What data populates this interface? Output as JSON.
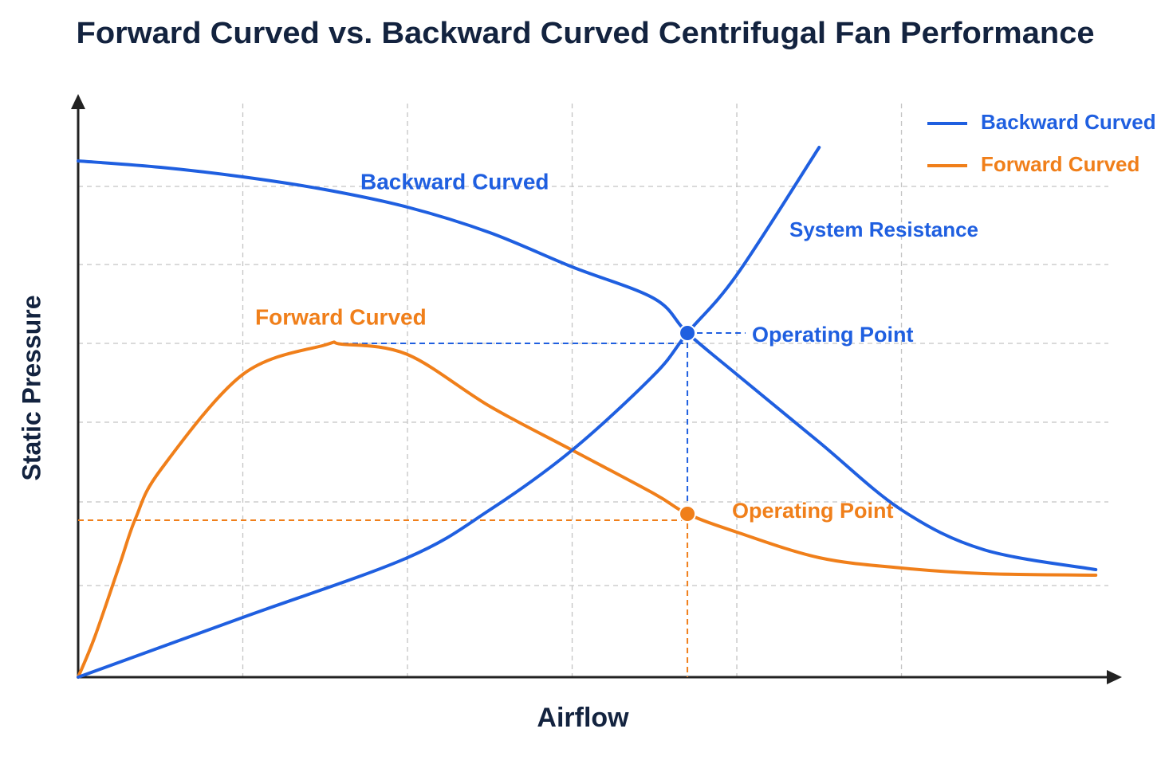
{
  "chart_data": {
    "type": "line",
    "title": "Forward Curved vs. Backward Curved Centrifugal Fan Performance",
    "x_label": "Airflow",
    "y_label": "Static Pressure",
    "xlim": [
      0,
      6.3
    ],
    "ylim": [
      0,
      7.25
    ],
    "xticks": [
      1,
      2,
      3,
      4,
      5
    ],
    "yticks": [
      1.15,
      2.2,
      3.2,
      4.19,
      5.18,
      6.16
    ],
    "grid": true,
    "legend": "upper right",
    "series": [
      {
        "name": "Backward Curved",
        "color": "#1f5fe0",
        "x": [
          0,
          0.5,
          1,
          1.5,
          2,
          2.5,
          3,
          3.5,
          3.7,
          4,
          4.5,
          5,
          5.5,
          6.18
        ],
        "values": [
          6.48,
          6.4,
          6.28,
          6.12,
          5.9,
          5.58,
          5.15,
          4.75,
          4.32,
          3.8,
          2.95,
          2.1,
          1.6,
          1.35
        ]
      },
      {
        "name": "Forward Curved",
        "color": "#f07f1a",
        "x": [
          0,
          0.1,
          0.25,
          0.35,
          0.5,
          1,
          1.5,
          1.6,
          2,
          2.5,
          3,
          3.5,
          3.7,
          4,
          4.5,
          5,
          5.5,
          6.18
        ],
        "values": [
          0,
          0.5,
          1.4,
          2.0,
          2.6,
          3.8,
          4.17,
          4.18,
          4.05,
          3.4,
          2.85,
          2.3,
          2.05,
          1.82,
          1.5,
          1.37,
          1.3,
          1.28
        ]
      }
    ],
    "system_curve": {
      "name": "System Resistance",
      "color": "#1f5fe0",
      "x": [
        0,
        1,
        2,
        2.5,
        3,
        3.5,
        3.7,
        4,
        4.5
      ],
      "values": [
        0,
        0.75,
        1.5,
        2.1,
        2.85,
        3.8,
        4.32,
        5.05,
        6.65
      ]
    },
    "operating_points": [
      {
        "label": "Operating Point",
        "color": "#1f5fe0",
        "x": 3.7,
        "y": 4.32
      },
      {
        "label": "Operating Point",
        "color": "#f07f1a",
        "x": 3.7,
        "y": 2.05
      }
    ]
  }
}
